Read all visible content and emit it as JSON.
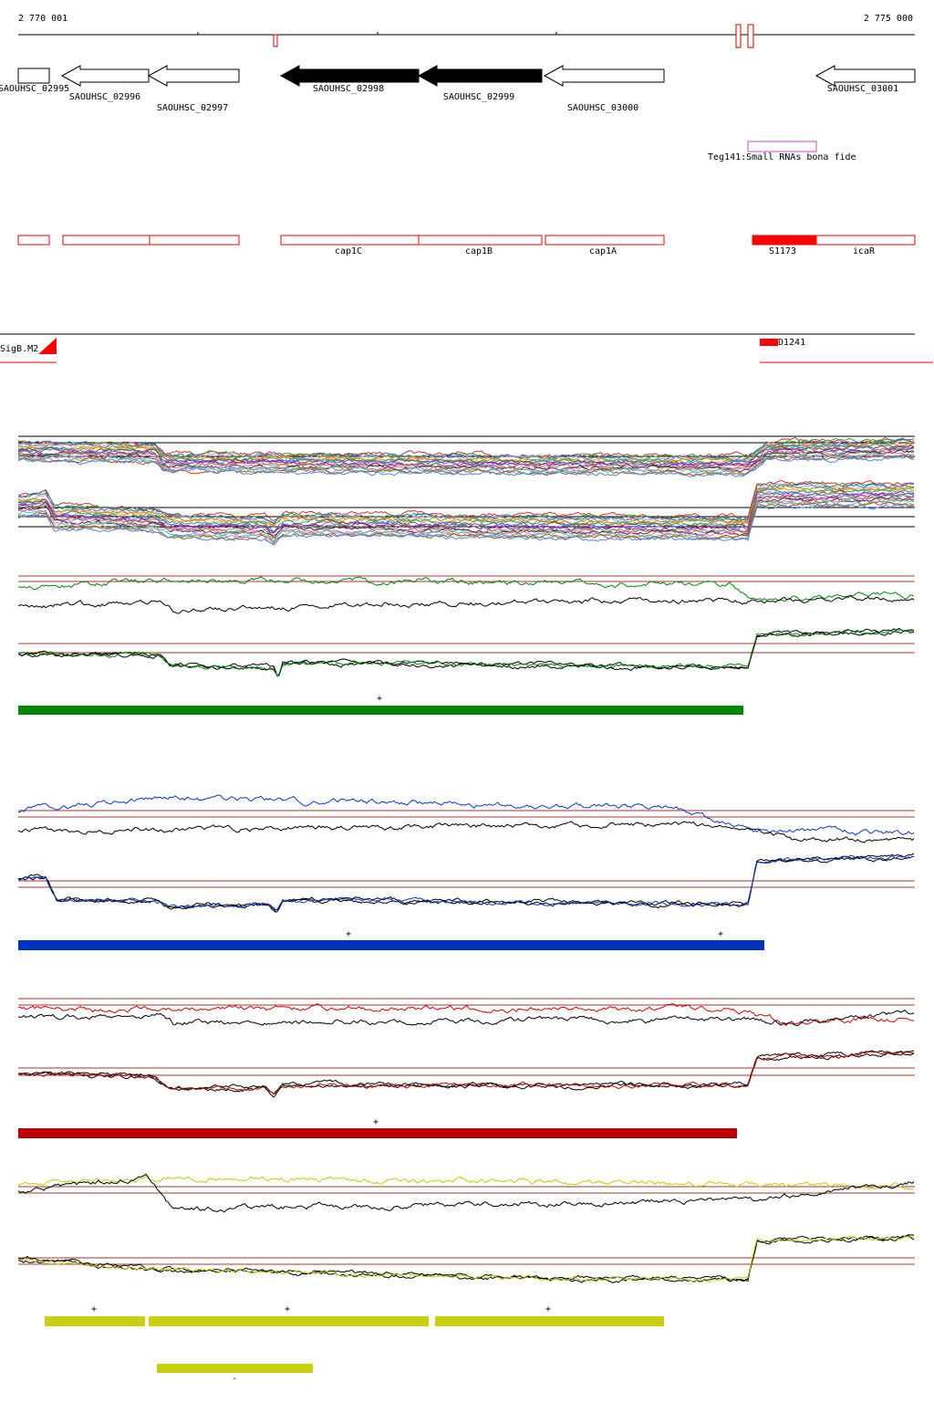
{
  "ruler": {
    "start": "2 770 001",
    "end": "2 775 000"
  },
  "genes": [
    "SAOUHSC_02995",
    "SAOUHSC_02996",
    "SAOUHSC_02997",
    "SAOUHSC_02998",
    "SAOUHSC_02999",
    "SAOUHSC_03000",
    "SAOUHSC_03001"
  ],
  "small_rna": "Teg141:Small RNAs bona fide",
  "features": [
    "cap1C",
    "cap1B",
    "cap1A",
    "S1173",
    "icaR"
  ],
  "promoter": "SigB.M2",
  "terminator": "D1241",
  "strand_marks": [
    "+",
    "+",
    "+",
    "+",
    "+",
    "+",
    "+",
    "-"
  ]
}
